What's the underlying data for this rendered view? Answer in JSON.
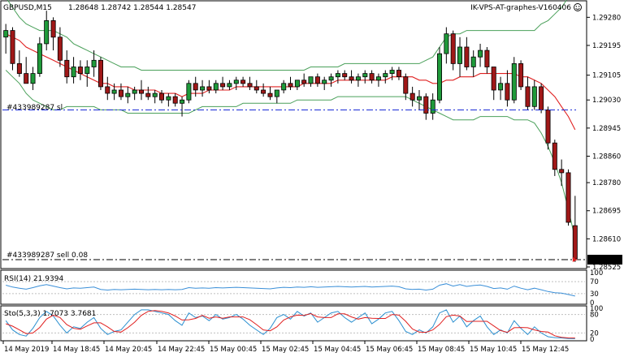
{
  "chart_data": {
    "type": "candlestick",
    "symbol_label": "GBPUSD,M15",
    "ohlc_label": "1.28648 1.28742 1.28544 1.28547",
    "expert_label": "IK-VPS-AT-graphes-V160406",
    "order_sl_label": "#433989287 sl",
    "order_sell_label": "#433989287 sell 0.08",
    "current_price_label": "1.28547",
    "ylim": [
      1.28525,
      1.29325
    ],
    "y_ticks": [
      "1.29280",
      "1.29195",
      "1.29105",
      "1.29030",
      "1.28945",
      "1.28860",
      "1.28780",
      "1.28695",
      "1.28610",
      "1.28525"
    ],
    "y_tick_values": [
      1.2928,
      1.29195,
      1.29105,
      1.2903,
      1.28945,
      1.2886,
      1.2878,
      1.28695,
      1.2861,
      1.28525
    ],
    "sl_price": 1.29,
    "sell_price": 1.28547,
    "x_labels": [
      "14 May 2019",
      "14 May 18:45",
      "14 May 20:45",
      "14 May 22:45",
      "15 May 00:45",
      "15 May 02:45",
      "15 May 04:45",
      "15 May 06:45",
      "15 May 08:45",
      "15 May 10:45",
      "15 May 12:45"
    ],
    "candles": [
      [
        1.2922,
        1.2926,
        1.2917,
        1.2924
      ],
      [
        1.2924,
        1.2925,
        1.2912,
        1.2914
      ],
      [
        1.2914,
        1.2918,
        1.291,
        1.2911
      ],
      [
        1.2911,
        1.2916,
        1.2908,
        1.2908
      ],
      [
        1.2908,
        1.2913,
        1.2906,
        1.2911
      ],
      [
        1.2911,
        1.2922,
        1.291,
        1.292
      ],
      [
        1.292,
        1.293,
        1.2918,
        1.2927
      ],
      [
        1.2927,
        1.2928,
        1.2918,
        1.2922
      ],
      [
        1.2922,
        1.2925,
        1.2913,
        1.2915
      ],
      [
        1.2915,
        1.2918,
        1.2908,
        1.291
      ],
      [
        1.291,
        1.2916,
        1.2908,
        1.2913
      ],
      [
        1.2913,
        1.2915,
        1.2909,
        1.2911
      ],
      [
        1.2911,
        1.2915,
        1.2907,
        1.2913
      ],
      [
        1.2913,
        1.2918,
        1.291,
        1.2915
      ],
      [
        1.2915,
        1.2916,
        1.2906,
        1.2907
      ],
      [
        1.2907,
        1.291,
        1.2903,
        1.2905
      ],
      [
        1.2905,
        1.2908,
        1.2903,
        1.2906
      ],
      [
        1.2906,
        1.2908,
        1.2903,
        1.2904
      ],
      [
        1.2904,
        1.2907,
        1.2902,
        1.2905
      ],
      [
        1.2905,
        1.2907,
        1.2903,
        1.2906
      ],
      [
        1.2906,
        1.2909,
        1.2903,
        1.2905
      ],
      [
        1.2905,
        1.2907,
        1.2903,
        1.2904
      ],
      [
        1.2904,
        1.2906,
        1.2902,
        1.2905
      ],
      [
        1.2905,
        1.2906,
        1.2902,
        1.2903
      ],
      [
        1.2903,
        1.2905,
        1.2901,
        1.2904
      ],
      [
        1.2904,
        1.2905,
        1.2901,
        1.2902
      ],
      [
        1.2902,
        1.2904,
        1.2898,
        1.2903
      ],
      [
        1.2903,
        1.2909,
        1.2902,
        1.2908
      ],
      [
        1.2908,
        1.291,
        1.2904,
        1.2906
      ],
      [
        1.2906,
        1.2909,
        1.2904,
        1.2907
      ],
      [
        1.2907,
        1.2909,
        1.2905,
        1.2906
      ],
      [
        1.2906,
        1.2909,
        1.2905,
        1.2908
      ],
      [
        1.2908,
        1.291,
        1.2906,
        1.2907
      ],
      [
        1.2907,
        1.2909,
        1.2906,
        1.2908
      ],
      [
        1.2908,
        1.291,
        1.2906,
        1.2909
      ],
      [
        1.2909,
        1.291,
        1.2907,
        1.2908
      ],
      [
        1.2908,
        1.291,
        1.2906,
        1.2907
      ],
      [
        1.2907,
        1.2909,
        1.2905,
        1.2906
      ],
      [
        1.2906,
        1.2908,
        1.2904,
        1.2905
      ],
      [
        1.2905,
        1.2907,
        1.2903,
        1.2904
      ],
      [
        1.2904,
        1.2906,
        1.2902,
        1.2906
      ],
      [
        1.2906,
        1.2909,
        1.2905,
        1.2908
      ],
      [
        1.2908,
        1.291,
        1.2906,
        1.2907
      ],
      [
        1.2907,
        1.2909,
        1.2906,
        1.2909
      ],
      [
        1.2909,
        1.2911,
        1.2907,
        1.2908
      ],
      [
        1.2908,
        1.291,
        1.2907,
        1.291
      ],
      [
        1.291,
        1.2911,
        1.2907,
        1.2908
      ],
      [
        1.2908,
        1.291,
        1.2906,
        1.2909
      ],
      [
        1.2909,
        1.2911,
        1.2907,
        1.291
      ],
      [
        1.291,
        1.2912,
        1.2908,
        1.2911
      ],
      [
        1.2911,
        1.2912,
        1.2909,
        1.291
      ],
      [
        1.291,
        1.2912,
        1.2908,
        1.2909
      ],
      [
        1.2909,
        1.2911,
        1.2907,
        1.291
      ],
      [
        1.291,
        1.2912,
        1.2908,
        1.2911
      ],
      [
        1.2911,
        1.2912,
        1.2908,
        1.2909
      ],
      [
        1.2909,
        1.2911,
        1.2907,
        1.291
      ],
      [
        1.291,
        1.2912,
        1.2908,
        1.2911
      ],
      [
        1.2911,
        1.2913,
        1.2909,
        1.2912
      ],
      [
        1.2912,
        1.2913,
        1.2909,
        1.291
      ],
      [
        1.291,
        1.2911,
        1.2903,
        1.2905
      ],
      [
        1.2905,
        1.2907,
        1.2901,
        1.2903
      ],
      [
        1.2903,
        1.2906,
        1.29,
        1.2904
      ],
      [
        1.2904,
        1.2905,
        1.2897,
        1.2899
      ],
      [
        1.2899,
        1.2905,
        1.2897,
        1.2903
      ],
      [
        1.2903,
        1.2919,
        1.2902,
        1.2917
      ],
      [
        1.2917,
        1.2925,
        1.2914,
        1.2923
      ],
      [
        1.2923,
        1.2924,
        1.2912,
        1.2914
      ],
      [
        1.2914,
        1.2922,
        1.291,
        1.2919
      ],
      [
        1.2919,
        1.2922,
        1.2912,
        1.2913
      ],
      [
        1.2913,
        1.2918,
        1.291,
        1.2916
      ],
      [
        1.2916,
        1.292,
        1.2913,
        1.2918
      ],
      [
        1.2918,
        1.2919,
        1.2911,
        1.2913
      ],
      [
        1.2913,
        1.2913,
        1.2903,
        1.2906
      ],
      [
        1.2906,
        1.291,
        1.2903,
        1.2908
      ],
      [
        1.2908,
        1.2912,
        1.2901,
        1.2903
      ],
      [
        1.2903,
        1.2916,
        1.2902,
        1.2914
      ],
      [
        1.2914,
        1.2915,
        1.2906,
        1.2907
      ],
      [
        1.2907,
        1.291,
        1.29,
        1.2901
      ],
      [
        1.2901,
        1.2909,
        1.29,
        1.2907
      ],
      [
        1.2907,
        1.2908,
        1.2899,
        1.29
      ],
      [
        1.29,
        1.2901,
        1.2888,
        1.289
      ],
      [
        1.289,
        1.2891,
        1.288,
        1.2882
      ],
      [
        1.2882,
        1.2885,
        1.2877,
        1.2881
      ],
      [
        1.2881,
        1.2882,
        1.2865,
        1.2866
      ],
      [
        1.2865,
        1.2874,
        1.2854,
        1.2855
      ]
    ],
    "ma": [
      1.2923,
      1.2922,
      1.2921,
      1.2919,
      1.2918,
      1.2917,
      1.2916,
      1.2915,
      1.2914,
      1.2913,
      1.2912,
      1.2911,
      1.291,
      1.2909,
      1.2908,
      1.2908,
      1.2907,
      1.2907,
      1.2907,
      1.2906,
      1.2906,
      1.2906,
      1.2906,
      1.2905,
      1.2905,
      1.2905,
      1.2904,
      1.2905,
      1.2905,
      1.2905,
      1.2906,
      1.2906,
      1.2906,
      1.2906,
      1.2907,
      1.2907,
      1.2907,
      1.2907,
      1.2907,
      1.2907,
      1.2907,
      1.2907,
      1.2907,
      1.2907,
      1.2908,
      1.2908,
      1.2908,
      1.2908,
      1.2908,
      1.2909,
      1.2909,
      1.2909,
      1.2909,
      1.2909,
      1.2909,
      1.2909,
      1.2909,
      1.291,
      1.291,
      1.291,
      1.291,
      1.2909,
      1.2909,
      1.2908,
      1.2908,
      1.2909,
      1.2909,
      1.291,
      1.291,
      1.291,
      1.2911,
      1.2911,
      1.2911,
      1.2911,
      1.2911,
      1.2911,
      1.291,
      1.291,
      1.2909,
      1.2908,
      1.2906,
      1.2904,
      1.2901,
      1.2898,
      1.2894
    ],
    "bb_upper": [
      1.2934,
      1.2931,
      1.2928,
      1.2926,
      1.2925,
      1.2924,
      1.2924,
      1.2924,
      1.2923,
      1.2922,
      1.292,
      1.2919,
      1.2918,
      1.2917,
      1.2916,
      1.2915,
      1.2914,
      1.2913,
      1.2913,
      1.2913,
      1.2912,
      1.2912,
      1.2912,
      1.2912,
      1.2912,
      1.2912,
      1.2912,
      1.2912,
      1.2912,
      1.2912,
      1.2912,
      1.2912,
      1.2912,
      1.2912,
      1.2912,
      1.2912,
      1.2912,
      1.2912,
      1.2912,
      1.2912,
      1.2912,
      1.2912,
      1.2912,
      1.2912,
      1.2912,
      1.2913,
      1.2913,
      1.2913,
      1.2913,
      1.2913,
      1.2914,
      1.2914,
      1.2914,
      1.2914,
      1.2914,
      1.2914,
      1.2914,
      1.2914,
      1.2914,
      1.2914,
      1.2914,
      1.2914,
      1.2915,
      1.2916,
      1.2919,
      1.2922,
      1.2923,
      1.2923,
      1.2924,
      1.2924,
      1.2924,
      1.2924,
      1.2924,
      1.2924,
      1.2924,
      1.2924,
      1.2924,
      1.2924,
      1.2924,
      1.2926,
      1.2927,
      1.2929,
      1.2931,
      1.2934,
      1.2937
    ],
    "bb_lower": [
      1.2912,
      1.291,
      1.2908,
      1.2905,
      1.2903,
      1.2902,
      1.2901,
      1.29,
      1.29,
      1.2901,
      1.2901,
      1.2901,
      1.2901,
      1.2901,
      1.29,
      1.29,
      1.29,
      1.29,
      1.2899,
      1.2899,
      1.2899,
      1.2899,
      1.2899,
      1.2899,
      1.2899,
      1.2899,
      1.2899,
      1.2899,
      1.29,
      1.2901,
      1.2901,
      1.2901,
      1.2901,
      1.2901,
      1.2901,
      1.2902,
      1.2902,
      1.2902,
      1.2902,
      1.2902,
      1.2902,
      1.2902,
      1.2902,
      1.2903,
      1.2903,
      1.2903,
      1.2903,
      1.2903,
      1.2903,
      1.2904,
      1.2904,
      1.2904,
      1.2904,
      1.2904,
      1.2904,
      1.2904,
      1.2904,
      1.2904,
      1.2904,
      1.2904,
      1.2903,
      1.2902,
      1.2901,
      1.29,
      1.2899,
      1.2898,
      1.2897,
      1.2897,
      1.2897,
      1.2897,
      1.2898,
      1.2898,
      1.2898,
      1.2898,
      1.2898,
      1.2897,
      1.2897,
      1.2897,
      1.2896,
      1.2893,
      1.2889,
      1.2884,
      1.2878,
      1.287,
      1.2861
    ],
    "rsi": {
      "label": "RSI(14) 21.9394",
      "levels": [
        70,
        30
      ],
      "tick_labels": [
        "100",
        "70",
        "30",
        "0"
      ],
      "values": [
        58,
        52,
        48,
        45,
        50,
        56,
        60,
        55,
        50,
        46,
        49,
        48,
        50,
        52,
        44,
        42,
        44,
        43,
        44,
        45,
        44,
        43,
        44,
        43,
        44,
        43,
        44,
        50,
        48,
        49,
        48,
        50,
        49,
        50,
        51,
        50,
        49,
        48,
        47,
        46,
        49,
        51,
        50,
        52,
        51,
        53,
        51,
        52,
        53,
        54,
        53,
        52,
        53,
        54,
        52,
        53,
        54,
        55,
        53,
        46,
        44,
        45,
        42,
        45,
        58,
        63,
        55,
        60,
        54,
        57,
        59,
        54,
        47,
        49,
        45,
        55,
        48,
        43,
        48,
        43,
        37,
        33,
        32,
        27,
        22
      ]
    },
    "stoch": {
      "label": "Sto(5,3,3) 1.7073 3.7681",
      "levels": [
        80,
        20
      ],
      "tick_labels": [
        "100",
        "80",
        "20",
        "0"
      ],
      "main": [
        60,
        30,
        15,
        10,
        35,
        70,
        90,
        75,
        45,
        20,
        40,
        35,
        55,
        70,
        35,
        15,
        25,
        30,
        55,
        80,
        95,
        95,
        90,
        85,
        80,
        60,
        45,
        85,
        70,
        75,
        60,
        80,
        65,
        70,
        80,
        65,
        45,
        30,
        15,
        35,
        70,
        80,
        65,
        90,
        75,
        85,
        55,
        70,
        85,
        90,
        70,
        55,
        70,
        85,
        50,
        65,
        85,
        90,
        60,
        25,
        15,
        30,
        20,
        40,
        85,
        95,
        55,
        75,
        40,
        60,
        75,
        40,
        15,
        30,
        20,
        60,
        35,
        15,
        40,
        20,
        8,
        5,
        4,
        2,
        1.7
      ],
      "signal": [
        50,
        42,
        30,
        18,
        20,
        38,
        65,
        78,
        70,
        47,
        35,
        32,
        43,
        53,
        53,
        40,
        25,
        23,
        37,
        55,
        77,
        90,
        93,
        90,
        85,
        75,
        62,
        63,
        67,
        77,
        68,
        72,
        68,
        72,
        72,
        72,
        63,
        47,
        30,
        27,
        40,
        62,
        72,
        78,
        77,
        83,
        72,
        70,
        70,
        82,
        82,
        72,
        65,
        70,
        68,
        67,
        67,
        80,
        78,
        58,
        33,
        23,
        22,
        30,
        48,
        73,
        78,
        75,
        57,
        58,
        58,
        58,
        43,
        28,
        22,
        37,
        38,
        37,
        30,
        25,
        23,
        11,
        6,
        4,
        3.8
      ]
    }
  }
}
